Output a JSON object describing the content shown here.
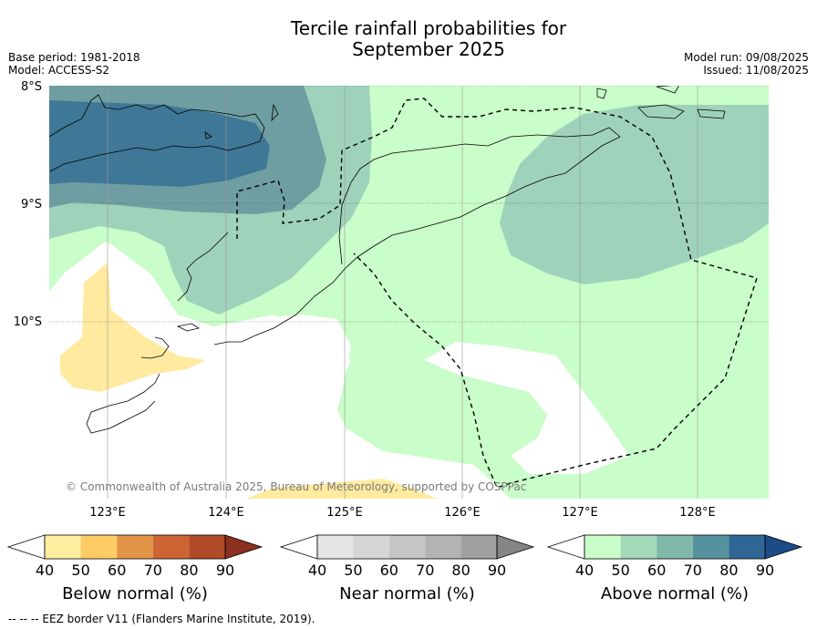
{
  "title_line1": "Tercile rainfall probabilities for",
  "title_line2": "September 2025",
  "meta_left": {
    "base_period": "Base period: 1981-2018",
    "model": "Model: ACCESS-S2"
  },
  "meta_right": {
    "model_run": "Model run: 09/08/2025",
    "issued": "Issued: 11/08/2025"
  },
  "lat_labels": [
    "8°S",
    "9°S",
    "10°S"
  ],
  "lon_labels": [
    "123°E",
    "124°E",
    "125°E",
    "126°E",
    "127°E",
    "128°E"
  ],
  "copyright": "© Commonwealth of Australia 2025, Bureau of Meteorology, supported by COSPPac",
  "colorbars": [
    {
      "label": "Below normal (%)",
      "ticks": [
        "40",
        "50",
        "60",
        "70",
        "80",
        "90"
      ],
      "colors": [
        "#ffffff",
        "#ffeea0",
        "#fecb65",
        "#e29446",
        "#cc6533",
        "#b04a28",
        "#8c3020"
      ]
    },
    {
      "label": "Near normal (%)",
      "ticks": [
        "40",
        "50",
        "60",
        "70",
        "80",
        "90"
      ],
      "colors": [
        "#ffffff",
        "#e5e5e5",
        "#d6d6d6",
        "#c5c5c5",
        "#b3b3b3",
        "#a0a0a0",
        "#858585"
      ]
    },
    {
      "label": "Above normal (%)",
      "ticks": [
        "40",
        "50",
        "60",
        "70",
        "80",
        "90"
      ],
      "colors": [
        "#ffffff",
        "#c9fdc9",
        "#a3d8b9",
        "#80b9aa",
        "#56919e",
        "#2f6696",
        "#1c4b88"
      ]
    }
  ],
  "footnote": "-- -- -- EEZ border V11 (Flanders Marine Institute, 2019).",
  "map_colors": {
    "above_40": "#c9fdc9",
    "above_50": "#9fd2ba",
    "above_60": "#6f9ea2",
    "above_70": "#3f7796",
    "below_40": "#ffeaa0"
  }
}
